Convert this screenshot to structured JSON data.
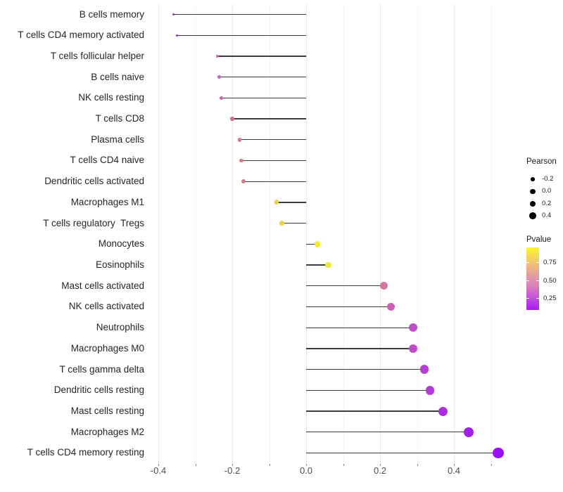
{
  "chart_data": {
    "type": "scatter",
    "variant": "lollipop",
    "orientation": "horizontal",
    "title": "",
    "xlabel": "",
    "ylabel": "",
    "xlim": [
      -0.45,
      0.55
    ],
    "x_tick_labels": [
      "-0.4",
      "-0.2",
      "0.0",
      "0.2",
      "0.4"
    ],
    "x_tick_values": [
      -0.4,
      -0.2,
      0.0,
      0.2,
      0.4
    ],
    "x_minor_values": [
      -0.3,
      -0.1,
      0.1,
      0.3,
      0.5
    ],
    "baseline_value": 0.0,
    "grid": true,
    "points": [
      {
        "label": "B cells memory",
        "pearson": -0.36,
        "color": "#9d2bce"
      },
      {
        "label": "T cells CD4 memory activated",
        "pearson": -0.35,
        "color": "#a02acd"
      },
      {
        "label": "T cells follicular helper",
        "pearson": -0.24,
        "color": "#c35bc2"
      },
      {
        "label": "B cells naive",
        "pearson": -0.235,
        "color": "#c55fbe"
      },
      {
        "label": "NK cells resting",
        "pearson": -0.23,
        "color": "#c764b4"
      },
      {
        "label": "T cells CD8",
        "pearson": -0.2,
        "color": "#cd6f9c"
      },
      {
        "label": "Plasma cells",
        "pearson": -0.18,
        "color": "#d27a8b"
      },
      {
        "label": "T cells CD4 naive",
        "pearson": -0.175,
        "color": "#d17b8a"
      },
      {
        "label": "Dendritic cells activated",
        "pearson": -0.17,
        "color": "#d17b8a"
      },
      {
        "label": "Macrophages M1",
        "pearson": -0.08,
        "color": "#edcb4b"
      },
      {
        "label": "T cells regulatory  Tregs",
        "pearson": -0.065,
        "color": "#efd145"
      },
      {
        "label": "Monocytes",
        "pearson": 0.03,
        "color": "#f5e937"
      },
      {
        "label": "Eosinophils",
        "pearson": 0.06,
        "color": "#f4e63a"
      },
      {
        "label": "Mast cells activated",
        "pearson": 0.21,
        "color": "#d478a2"
      },
      {
        "label": "NK cells activated",
        "pearson": 0.23,
        "color": "#cb62b5"
      },
      {
        "label": "Neutrophils",
        "pearson": 0.29,
        "color": "#bd4ec5"
      },
      {
        "label": "Macrophages M0",
        "pearson": 0.29,
        "color": "#bc4cc7"
      },
      {
        "label": "T cells gamma delta",
        "pearson": 0.32,
        "color": "#b541d0"
      },
      {
        "label": "Dendritic cells resting",
        "pearson": 0.335,
        "color": "#b23cd5"
      },
      {
        "label": "Mast cells resting",
        "pearson": 0.37,
        "color": "#ab2fde"
      },
      {
        "label": "Macrophages M2",
        "pearson": 0.44,
        "color": "#a21eea"
      },
      {
        "label": "T cells CD4 memory resting",
        "pearson": 0.52,
        "color": "#9910f5"
      }
    ],
    "legend_size": {
      "title": "Pearson",
      "items": [
        {
          "label": "-0.2",
          "value": -0.2
        },
        {
          "label": "0.0",
          "value": 0.0
        },
        {
          "label": "0.2",
          "value": 0.2
        },
        {
          "label": "0.4",
          "value": 0.4
        }
      ],
      "dot_color": "#000000"
    },
    "legend_color": {
      "title": "Pvalue",
      "tick_labels": [
        "0.75",
        "0.50",
        "0.25"
      ],
      "gradient_top_to_bottom": [
        "#fbf42c",
        "#f2c573",
        "#e49ba2",
        "#da7fbb",
        "#c658d7",
        "#a81bf2"
      ]
    },
    "colors": {
      "segment": "#3c3c3c",
      "grid_major": "#e7e7e7",
      "grid_minor": "#f4f4f4",
      "axis_text": "#4d4d4d",
      "background": "#ffffff"
    }
  }
}
